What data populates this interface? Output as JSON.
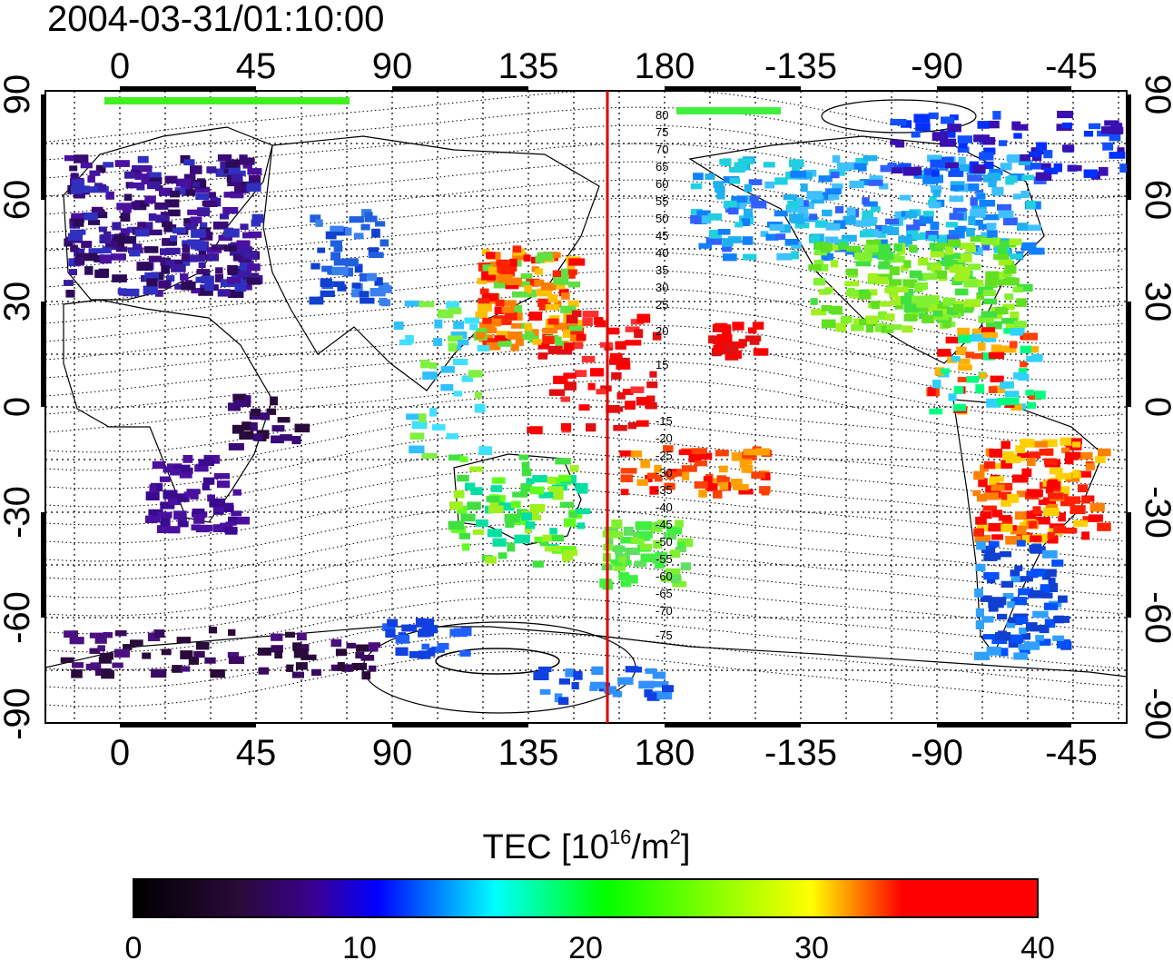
{
  "map": {
    "timestamp": "2004-03-31/01:10:00",
    "lon_ticks": [
      "0",
      "45",
      "90",
      "135",
      "180",
      "-135",
      "-90",
      "-45"
    ],
    "lat_ticks": [
      "90",
      "60",
      "30",
      "0",
      "-30",
      "-60",
      "-90"
    ],
    "meridian_line_color": "#dd0000",
    "contour_labels_north": [
      "80",
      "75",
      "70",
      "65",
      "60",
      "55",
      "50",
      "45",
      "40",
      "35",
      "30",
      "25",
      "20",
      "15"
    ],
    "contour_labels_south": [
      "-15",
      "-20",
      "-25",
      "-30",
      "-35",
      "-40",
      "-45",
      "-50",
      "-55",
      "-60",
      "-65",
      "-70",
      "-75"
    ]
  },
  "colorbar": {
    "title_prefix": "TEC  [10",
    "title_exp1": "16",
    "title_mid": "/m",
    "title_exp2": "2",
    "title_suffix": "]",
    "ticks": [
      "0",
      "10",
      "20",
      "30",
      "40"
    ],
    "colors": [
      "#000000",
      "#2a0a3a",
      "#3a0090",
      "#0000ff",
      "#00ffff",
      "#00ff00",
      "#ffff00",
      "#ff0000",
      "#ff0000"
    ]
  }
}
